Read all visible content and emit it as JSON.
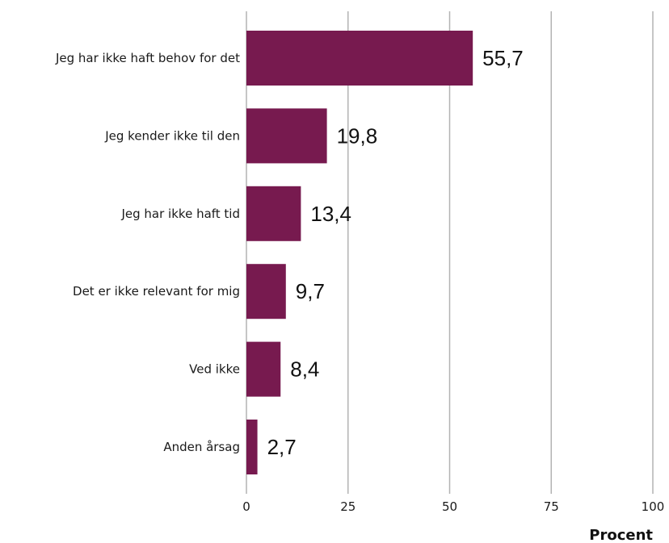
{
  "chart_data": {
    "type": "bar",
    "orientation": "horizontal",
    "categories": [
      "Jeg har ikke haft behov for det",
      "Jeg kender ikke til den",
      "Jeg har ikke haft tid",
      "Det er ikke relevant for mig",
      "Ved ikke",
      "Anden årsag"
    ],
    "values": [
      55.7,
      19.8,
      13.4,
      9.7,
      8.4,
      2.7
    ],
    "value_labels": [
      "55,7",
      "19,8",
      "13,4",
      "9,7",
      "8,4",
      "2,7"
    ],
    "xlabel": "Procent",
    "xlim": [
      0,
      100
    ],
    "xticks": [
      0,
      25,
      50,
      75,
      100
    ],
    "grid": true,
    "legend": "none",
    "bar_color": "#771a4f",
    "grid_color": "#b3b3b3"
  }
}
